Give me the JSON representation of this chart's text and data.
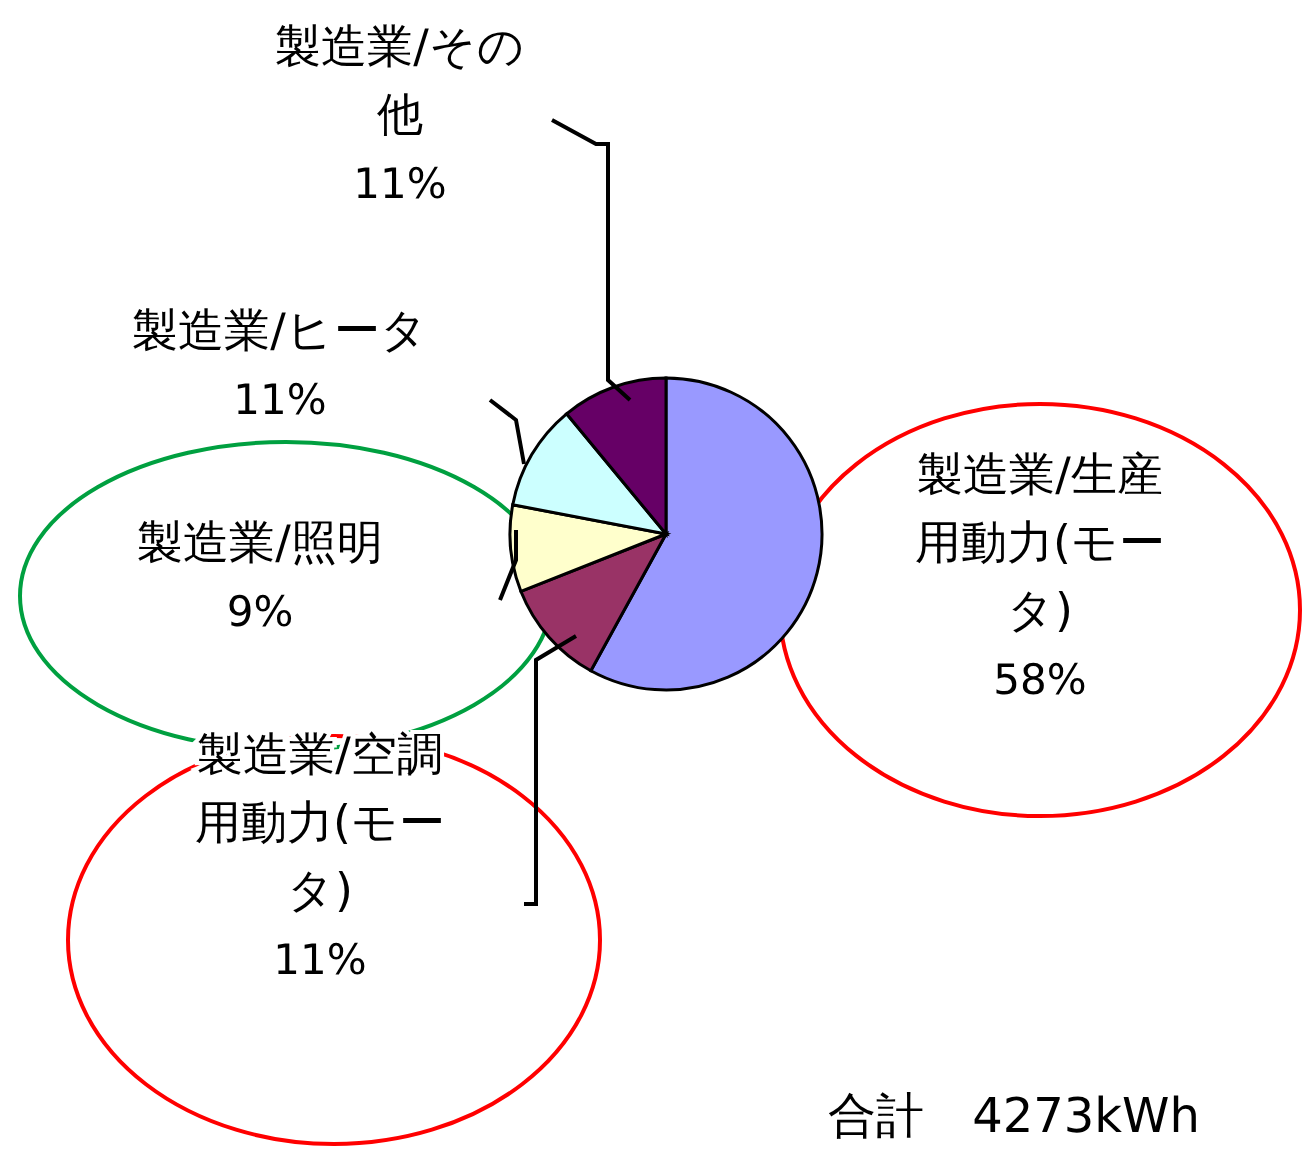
{
  "chart_data": {
    "type": "pie",
    "categories": [
      "製造業/生産用動力(モータ)",
      "製造業/空調用動力(モータ)",
      "製造業/照明",
      "製造業/ヒータ",
      "製造業/その他"
    ],
    "values": [
      58,
      11,
      9,
      11,
      11
    ],
    "value_labels": [
      "58%",
      "11%",
      "9%",
      "11%",
      "11%"
    ],
    "colors": [
      "#9999ff",
      "#993366",
      "#ffffcc",
      "#ccffff",
      "#660066"
    ],
    "annotations": [
      "合計　4273kWh"
    ]
  }
}
